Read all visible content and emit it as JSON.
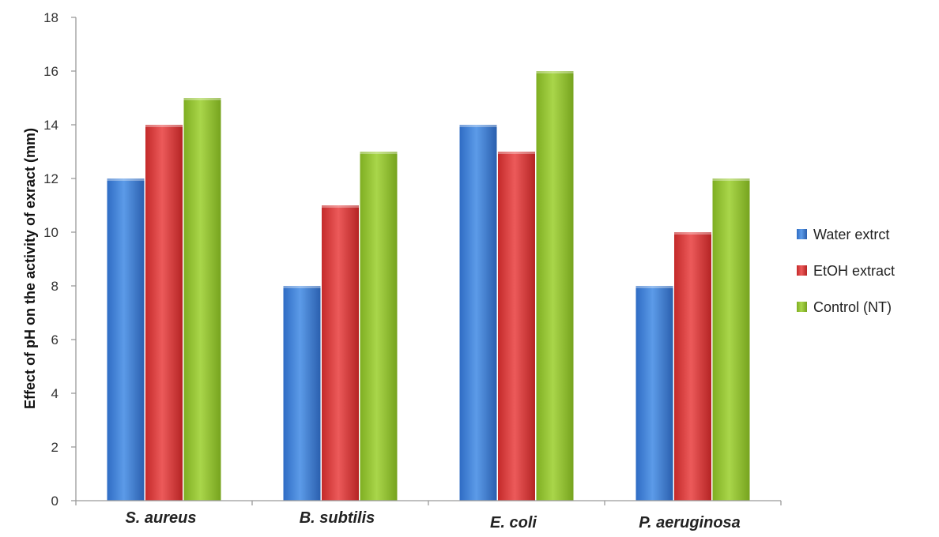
{
  "chart_data": {
    "type": "bar",
    "title": "",
    "xlabel": "",
    "ylabel": "Effect of pH on the activity of exract (mm)",
    "ylim": [
      0,
      18
    ],
    "yticks": [
      "0",
      "2",
      "4",
      "6",
      "8",
      "10",
      "12",
      "14",
      "16",
      "18"
    ],
    "categories": [
      "S. aureus",
      "B. subtilis",
      "E. coli",
      "P. aeruginosa"
    ],
    "series": [
      {
        "name": "Water extrct",
        "values": [
          12,
          8,
          14,
          8
        ],
        "color": "#3d7fd6"
      },
      {
        "name": "EtOH extract",
        "values": [
          14,
          11,
          13,
          10
        ],
        "color": "#d93a3a"
      },
      {
        "name": "Control (NT)",
        "values": [
          15,
          13,
          16,
          12
        ],
        "color": "#92c131"
      }
    ],
    "grid": false,
    "legend_position": "right"
  }
}
